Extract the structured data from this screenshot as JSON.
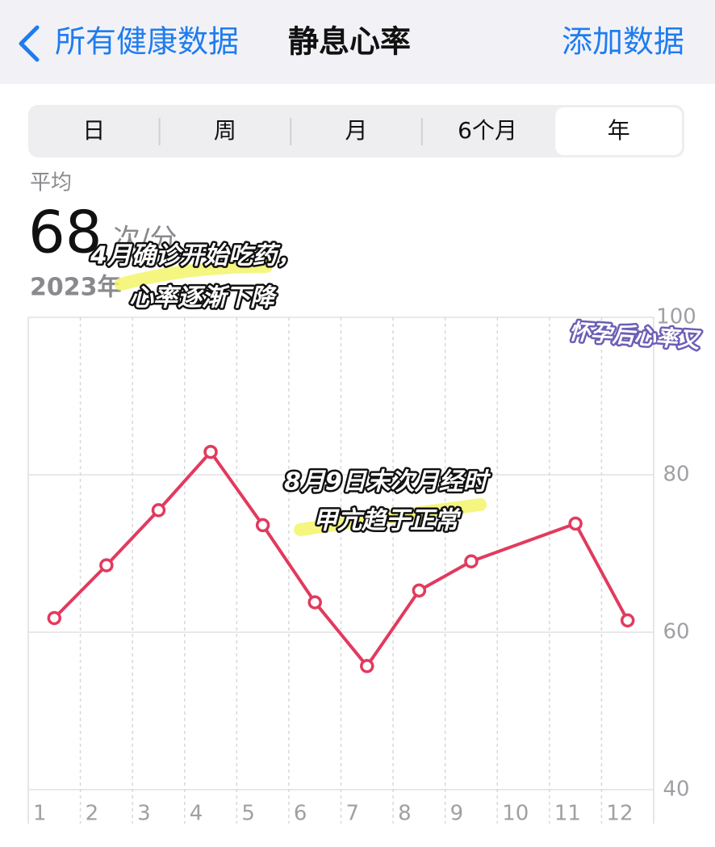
{
  "header": {
    "back": "所有健康数据",
    "title": "静息心率",
    "action": "添加数据"
  },
  "segments": [
    "日",
    "周",
    "月",
    "6个月",
    "年"
  ],
  "selected_segment": 4,
  "summary": {
    "label": "平均",
    "value": 68,
    "unit": "次/分",
    "period": "2023年"
  },
  "chart_data": {
    "type": "line",
    "x": [
      1,
      2,
      3,
      4,
      5,
      6,
      7,
      8,
      9,
      11,
      12
    ],
    "series": [
      {
        "color": "#e23a5e",
        "values": [
          61.8,
          68.5,
          75.5,
          82.9,
          73.6,
          63.8,
          55.7,
          65.3,
          69.0,
          73.8,
          61.5
        ]
      }
    ],
    "xlim": [
      0.5,
      12.5
    ],
    "xticks": [
      1,
      2,
      3,
      4,
      5,
      6,
      7,
      8,
      9,
      10,
      11,
      12
    ],
    "ylim": [
      40,
      100
    ],
    "yticks": [
      40,
      60,
      80,
      100
    ],
    "grid": true
  },
  "annotations": [
    {
      "lines": [
        "4月确诊开始吃药，",
        "心率逐渐下降"
      ]
    },
    {
      "lines": [
        "8月9日末次月经时",
        "甲亢趋于正常"
      ]
    },
    {
      "lines": [
        "怀孕后心率又"
      ]
    }
  ]
}
